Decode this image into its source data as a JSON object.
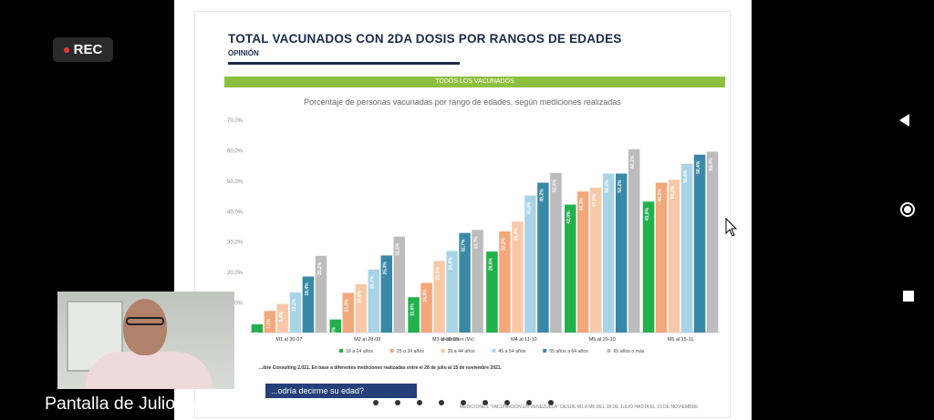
{
  "recording": {
    "label": "REC"
  },
  "slide": {
    "title": "TOTAL VACUNADOS CON 2DA DOSIS POR RANGOS DE EDADES",
    "subtitle": "OPINIÓN",
    "band_label": "TODOS LOS VACUNADOS",
    "footnote": "...ibre Consulting 2.021. En base a diferentes mediciones realizadas entre el 28 de julio al 15 de noviembre 2021.",
    "bottom_note": "MEDICIONES “VACUNACIÓN EN VENEZUELA” DESDE M1 A M6 DEL 28 DE JULIO HASTA EL 15 DE NOVIEMBRE",
    "question": "...odría decirme su edad?"
  },
  "chart_data": {
    "type": "bar",
    "title": "Porcentaje de personas vacunadas por rango de edades, según mediciones realizadas",
    "xlabel": "Mediciones (Mx)",
    "ylabel": "",
    "ylim": [
      0,
      70
    ],
    "yticks": [
      "70,0%",
      "60,0%",
      "50,0%",
      "40,0%",
      "30,0%",
      "20,0%",
      "10,0%"
    ],
    "categories": [
      "M1 al 30-07",
      "M2 al 28-08",
      "M3 al 30-09",
      "M4 al 11-10",
      "M5 al 29-10",
      "M6 al 15-11"
    ],
    "series": [
      {
        "name": "18 a 24 años",
        "color": "#22b04c",
        "values": [
          2.7,
          4.3,
          11.6,
          26.6,
          42.0,
          43.0
        ]
      },
      {
        "name": "25 a 34 años",
        "color": "#f4a77a",
        "values": [
          7.1,
          13.0,
          16.3,
          33.2,
          46.3,
          49.2
        ]
      },
      {
        "name": "35 a 44 años",
        "color": "#f8c9a8",
        "values": [
          9.4,
          15.9,
          23.5,
          36.4,
          47.6,
          50.2
        ]
      },
      {
        "name": "45 a 54 años",
        "color": "#a9d4e8",
        "values": [
          13.2,
          20.7,
          26.8,
          45.0,
          52.2,
          55.4
        ]
      },
      {
        "name": "55 años a 64 años",
        "color": "#3a88a8",
        "values": [
          18.4,
          25.3,
          32.7,
          49.2,
          52.2,
          58.4
        ]
      },
      {
        "name": "65 años o más",
        "color": "#bcbcbc",
        "values": [
          25.2,
          31.5,
          33.7,
          52.4,
          60.2,
          59.4
        ]
      }
    ],
    "data_labels": [
      [
        "2,7%",
        "7,1%",
        "9,4%",
        "13,2%",
        "18,4%",
        "25,2%"
      ],
      [
        "4,3%",
        "13,0%",
        "15,9%",
        "20,7%",
        "25,3%",
        "31,5%"
      ],
      [
        "11,6%",
        "16,3%",
        "23,5%",
        "26,8%",
        "32,7%",
        "33,7%"
      ],
      [
        "26,6%",
        "33,2%",
        "36,4%",
        "45,0%",
        "49,2%",
        "52,4%"
      ],
      [
        "42,0%",
        "46,3%",
        "47,6%",
        "52,2%",
        "52,2%",
        "60,2%"
      ],
      [
        "43,0%",
        "49,2%",
        "50,2%",
        "55,4%",
        "58,4%",
        "59,4%"
      ]
    ],
    "legend": "bottom",
    "grid": false
  },
  "webcam": {
    "caption": "Pantalla de Julio Castro"
  },
  "nav": {
    "back": "back-icon",
    "home": "home-icon",
    "recents": "recents-icon"
  }
}
